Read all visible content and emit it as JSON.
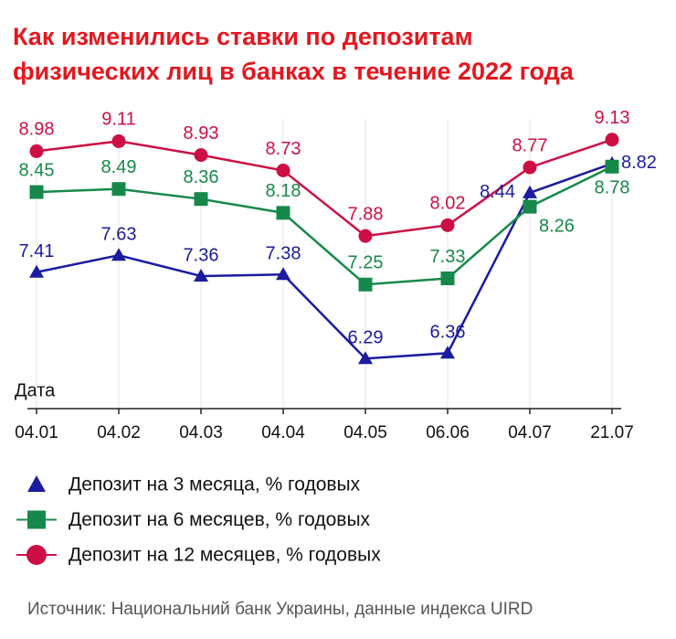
{
  "chart_data": {
    "type": "line",
    "title": [
      "Как изменились ставки по депозитам",
      "физических лиц в банках в течение 2022 года"
    ],
    "x_label": "Дата",
    "categories": [
      "04.01",
      "04.02",
      "04.03",
      "04.04",
      "04.05",
      "06.06",
      "04.07",
      "21.07"
    ],
    "series": [
      {
        "name": "Депозит на 3 месяца, % годовых",
        "color": "#1b1b9e",
        "marker": "triangle",
        "values": [
          7.41,
          7.63,
          7.36,
          7.38,
          6.29,
          6.36,
          8.44,
          8.82
        ]
      },
      {
        "name": "Депозит на 6 месяцев, % годовых",
        "color": "#16894a",
        "marker": "square",
        "values": [
          8.45,
          8.49,
          8.36,
          8.18,
          7.25,
          7.33,
          8.26,
          8.78
        ]
      },
      {
        "name": "Депозит на 12 месяцев, % годовых",
        "color": "#cc1045",
        "marker": "circle",
        "values": [
          8.98,
          9.11,
          8.93,
          8.73,
          7.88,
          8.02,
          8.77,
          9.13
        ]
      }
    ],
    "ylim": [
      5.64,
      9.4
    ],
    "grid": true,
    "source": "Источник: Национальний банк Украины, данные индекса UIRD"
  }
}
